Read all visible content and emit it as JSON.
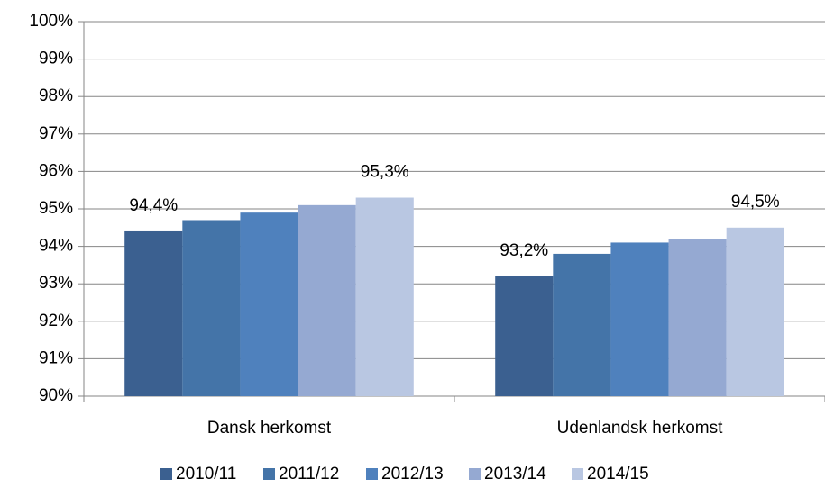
{
  "chart_data": {
    "type": "bar",
    "categories": [
      "Dansk herkomst",
      "Udenlandsk herkomst"
    ],
    "series": [
      {
        "name": "2010/11",
        "color": "#3b6090",
        "values": [
          94.4,
          93.2
        ],
        "value_labels": [
          "94,4%",
          "93,2%"
        ]
      },
      {
        "name": "2011/12",
        "color": "#4474a8",
        "values": [
          94.7,
          93.8
        ]
      },
      {
        "name": "2012/13",
        "color": "#4f81bd",
        "values": [
          94.9,
          94.1
        ]
      },
      {
        "name": "2013/14",
        "color": "#95a9d2",
        "values": [
          95.1,
          94.2
        ]
      },
      {
        "name": "2014/15",
        "color": "#b9c7e2",
        "values": [
          95.3,
          94.5
        ],
        "value_labels": [
          "95,3%",
          "94,5%"
        ]
      }
    ],
    "ylim": [
      90,
      100
    ],
    "yticks": [
      {
        "value": 90,
        "label": "90%"
      },
      {
        "value": 91,
        "label": "91%"
      },
      {
        "value": 92,
        "label": "92%"
      },
      {
        "value": 93,
        "label": "93%"
      },
      {
        "value": 94,
        "label": "94%"
      },
      {
        "value": 95,
        "label": "95%"
      },
      {
        "value": 96,
        "label": "96%"
      },
      {
        "value": 97,
        "label": "97%"
      },
      {
        "value": 98,
        "label": "98%"
      },
      {
        "value": 99,
        "label": "99%"
      },
      {
        "value": 100,
        "label": "100%"
      }
    ],
    "grid": true,
    "legend": "bottom"
  }
}
